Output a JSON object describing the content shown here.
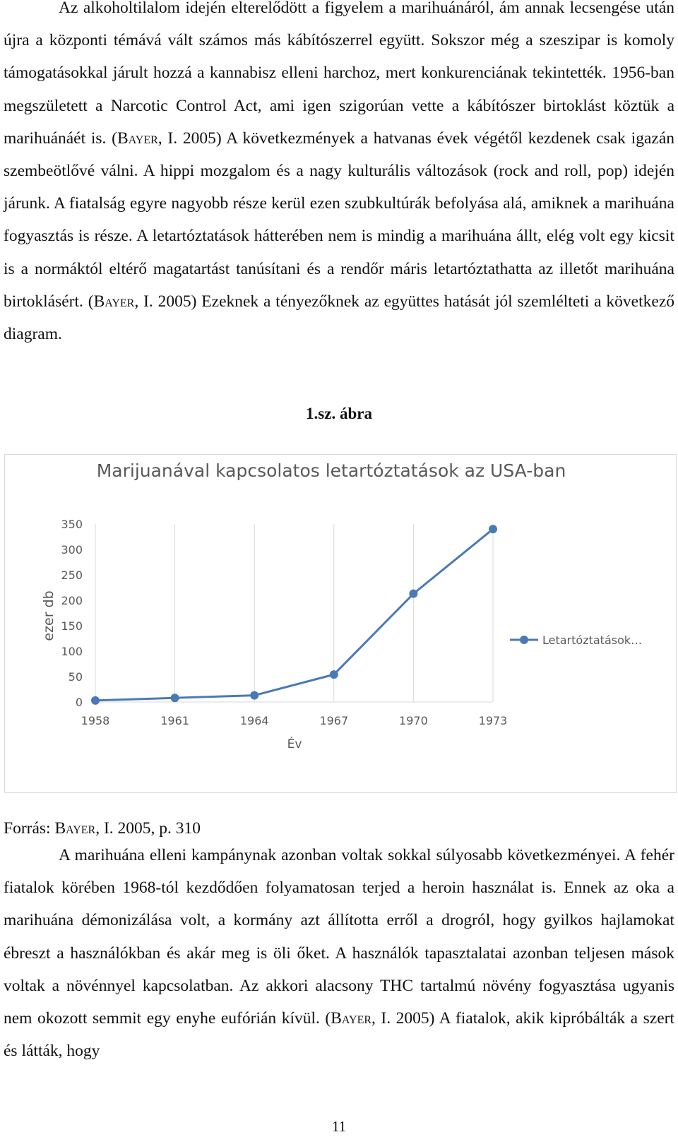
{
  "paragraph1": {
    "seg1": "Az alkoholtilalom idején elterelődött a figyelem a marihuánáról, ám annak lecsengése után újra a központi témává vált számos más kábítószerrel együtt. Sokszor még a szeszipar is komoly támogatásokkal járult hozzá a kannabisz elleni harchoz, mert konkurenciának tekintették. 1956-ban megszületett a Narcotic Control Act, ami igen szigorúan vette a kábítószer birtoklást köztük a marihuánáét is. (",
    "cite1": "Bayer",
    "seg2": ", I. 2005) A következmények a hatvanas évek végétől kezdenek csak igazán szembeötlővé válni. A hippi mozgalom és a nagy kulturális változások (rock and roll, pop) idején járunk. A fiatalság egyre nagyobb része kerül ezen szubkultúrák befolyása alá, amiknek a marihuána fogyasztás is része. A letartóztatások hátterében nem is mindig a marihuána állt, elég volt egy kicsit is a normáktól eltérő magatartást tanúsítani és a rendőr máris letartóztathatta az illetőt marihuána birtoklásért. (",
    "cite2": "Bayer",
    "seg3": ", I. 2005) Ezeknek a tényezőknek az együttes hatását jól szemlélteti a következő diagram."
  },
  "figure_caption": "1.sz. ábra",
  "chart_data": {
    "type": "line",
    "title": "Marijuanával kapcsolatos letartóztatások az USA-ban",
    "xlabel": "Év",
    "ylabel": "ezer db",
    "categories": [
      "1958",
      "1961",
      "1964",
      "1967",
      "1970",
      "1973"
    ],
    "yticks": [
      "0",
      "50",
      "100",
      "150",
      "200",
      "250",
      "300",
      "350"
    ],
    "ylim": [
      0,
      350
    ],
    "series": [
      {
        "name": "Letartóztatások…",
        "values": [
          3,
          8,
          13,
          54,
          213,
          340
        ]
      }
    ],
    "grid": "vertical",
    "legend": "right",
    "colors": {
      "series": "#4a7ab5",
      "axis_text": "#595959",
      "title": "#595959",
      "grid": "#d9d9d9"
    }
  },
  "source": {
    "prefix": "Forrás: ",
    "author": "Bayer",
    "suffix": ", I. 2005, p. 310"
  },
  "paragraph2": {
    "seg1": "A marihuána elleni kampánynak azonban voltak sokkal súlyosabb következményei. A fehér fiatalok körében 1968-tól kezdődően folyamatosan terjed a heroin használat is. Ennek az oka a marihuána démonizálása volt, a kormány azt állította erről a drogról, hogy gyilkos hajlamokat ébreszt a használókban és akár meg is öli őket. A használók tapasztalatai azonban teljesen mások voltak a növénnyel kapcsolatban. Az akkori alacsony THC tartalmú növény fogyasztása ugyanis nem okozott semmit egy enyhe eufórián kívül. (",
    "cite": "Bayer",
    "seg2": ", I. 2005) A fiatalok, akik kipróbálták a szert és látták, hogy"
  },
  "page_number": "11"
}
